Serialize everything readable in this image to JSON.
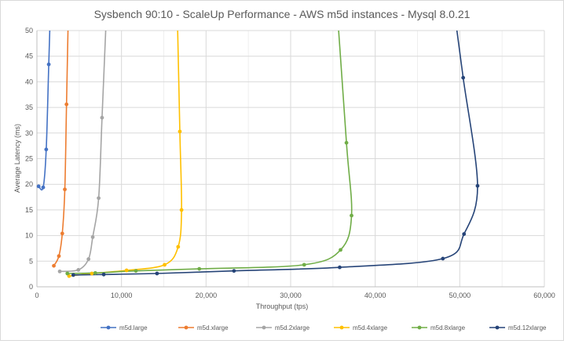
{
  "chart_data": {
    "type": "line",
    "title": "Sysbench 90:10 - ScaleUp Performance - AWS m5d instances - Mysql 8.0.21",
    "xlabel": "Throughput (tps)",
    "ylabel": "Average Latency (ms)",
    "xlim": [
      0,
      60000
    ],
    "ylim": [
      0,
      50
    ],
    "xticks": [
      0,
      10000,
      20000,
      30000,
      40000,
      50000,
      60000
    ],
    "xtick_labels": [
      "0",
      "10,000",
      "20,000",
      "30,000",
      "40,000",
      "50,000",
      "60,000"
    ],
    "yticks": [
      0,
      5,
      10,
      15,
      20,
      25,
      30,
      35,
      40,
      45,
      50
    ],
    "ytick_labels": [
      "0",
      "5",
      "10",
      "15",
      "20",
      "25",
      "30",
      "35",
      "40",
      "45",
      "50"
    ],
    "grid": true,
    "legend_position": "bottom",
    "series": [
      {
        "name": "m5d.large",
        "color": "#4472c4",
        "points": [
          [
            200,
            19.6
          ],
          [
            740,
            19.4
          ],
          [
            1100,
            26.8
          ],
          [
            1400,
            43.4
          ]
        ]
      },
      {
        "name": "m5d.xlarge",
        "color": "#ed7d31",
        "points": [
          [
            2000,
            4.1
          ],
          [
            2600,
            6.0
          ],
          [
            3000,
            10.4
          ],
          [
            3300,
            19.0
          ],
          [
            3500,
            35.6
          ]
        ]
      },
      {
        "name": "m5d.2xlarge",
        "color": "#a5a5a5",
        "points": [
          [
            2700,
            3.0
          ],
          [
            4900,
            3.3
          ],
          [
            6100,
            5.4
          ],
          [
            6600,
            9.7
          ],
          [
            7300,
            17.3
          ],
          [
            7700,
            33.0
          ]
        ]
      },
      {
        "name": "m5d.4xlarge",
        "color": "#ffc000",
        "points": [
          [
            3800,
            2.1
          ],
          [
            6500,
            2.6
          ],
          [
            10600,
            3.2
          ],
          [
            15100,
            4.3
          ],
          [
            16700,
            7.8
          ],
          [
            17100,
            15.0
          ],
          [
            16900,
            30.3
          ]
        ]
      },
      {
        "name": "m5d.8xlarge",
        "color": "#70ad47",
        "points": [
          [
            3600,
            2.6
          ],
          [
            6900,
            2.7
          ],
          [
            11700,
            3.1
          ],
          [
            19200,
            3.5
          ],
          [
            31600,
            4.3
          ],
          [
            35900,
            7.2
          ],
          [
            37200,
            13.9
          ],
          [
            36600,
            28.1
          ]
        ]
      },
      {
        "name": "m5d.12xlarge",
        "color": "#264478",
        "points": [
          [
            4300,
            2.3
          ],
          [
            7900,
            2.4
          ],
          [
            14200,
            2.6
          ],
          [
            23300,
            3.1
          ],
          [
            35800,
            3.8
          ],
          [
            48000,
            5.5
          ],
          [
            50500,
            10.3
          ],
          [
            52100,
            19.7
          ],
          [
            50400,
            40.8
          ]
        ]
      }
    ]
  }
}
